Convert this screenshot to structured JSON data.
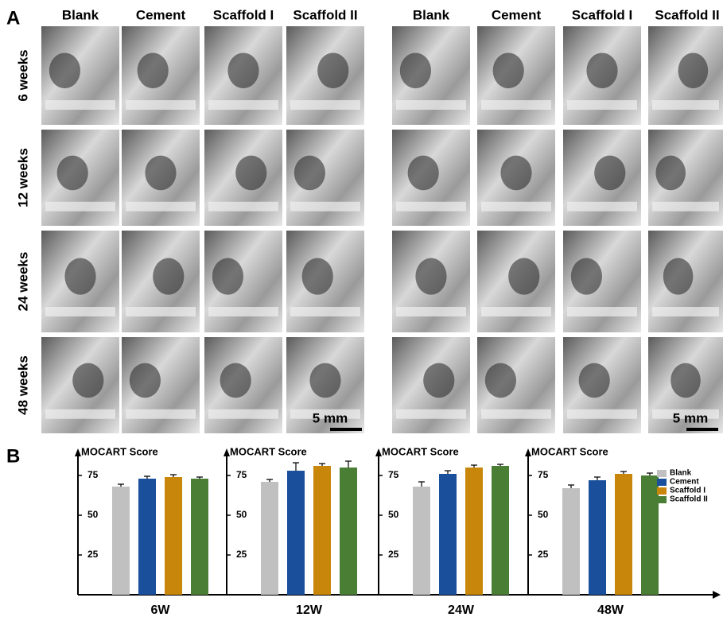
{
  "panel_a": {
    "label": "A",
    "columns": [
      "Blank",
      "Cement",
      "Scaffold I",
      "Scaffold II",
      "Blank",
      "Cement",
      "Scaffold I",
      "Scaffold II"
    ],
    "rows": [
      "6 weeks",
      "12 weeks",
      "24 weeks",
      "48 weeks"
    ],
    "scale_bar": "5 mm"
  },
  "panel_b": {
    "label": "B"
  },
  "chart_data": [
    {
      "type": "bar",
      "title": "MOCART Score",
      "categories": [
        "6W"
      ],
      "ylim": [
        0,
        90
      ],
      "yticks": [
        25,
        50,
        75
      ],
      "series": [
        {
          "color": "#c0c0c0",
          "values": [
            68
          ],
          "errors": [
            1.5
          ]
        },
        {
          "color": "#1a4f9c",
          "values": [
            73
          ],
          "errors": [
            1.5
          ]
        },
        {
          "color": "#c8860a",
          "values": [
            74
          ],
          "errors": [
            1.5
          ]
        },
        {
          "color": "#4a7e34",
          "values": [
            73
          ],
          "errors": [
            1
          ]
        }
      ]
    },
    {
      "type": "bar",
      "title": "MOCART Score",
      "categories": [
        "12W"
      ],
      "ylim": [
        0,
        90
      ],
      "yticks": [
        25,
        50,
        75
      ],
      "series": [
        {
          "color": "#c0c0c0",
          "values": [
            71
          ],
          "errors": [
            1.5
          ]
        },
        {
          "color": "#1a4f9c",
          "values": [
            78
          ],
          "errors": [
            5
          ]
        },
        {
          "color": "#c8860a",
          "values": [
            81
          ],
          "errors": [
            1.5
          ]
        },
        {
          "color": "#4a7e34",
          "values": [
            80
          ],
          "errors": [
            4
          ]
        }
      ]
    },
    {
      "type": "bar",
      "title": "MOCART Score",
      "categories": [
        "24W"
      ],
      "ylim": [
        0,
        90
      ],
      "yticks": [
        25,
        50,
        75
      ],
      "series": [
        {
          "color": "#c0c0c0",
          "values": [
            68
          ],
          "errors": [
            3
          ]
        },
        {
          "color": "#1a4f9c",
          "values": [
            76
          ],
          "errors": [
            2
          ]
        },
        {
          "color": "#c8860a",
          "values": [
            80
          ],
          "errors": [
            1.5
          ]
        },
        {
          "color": "#4a7e34",
          "values": [
            81
          ],
          "errors": [
            1
          ]
        }
      ]
    },
    {
      "type": "bar",
      "title": "MOCART Score",
      "categories": [
        "48W"
      ],
      "ylim": [
        0,
        90
      ],
      "yticks": [
        25,
        50,
        75
      ],
      "legend": "upper right",
      "series": [
        {
          "name": "Blank",
          "color": "#c0c0c0",
          "values": [
            67
          ],
          "errors": [
            2
          ]
        },
        {
          "name": "Cement",
          "color": "#1a4f9c",
          "values": [
            72
          ],
          "errors": [
            2
          ]
        },
        {
          "name": "Scaffold I",
          "color": "#c8860a",
          "values": [
            76
          ],
          "errors": [
            1.5
          ]
        },
        {
          "name": "Scaffold II",
          "color": "#4a7e34",
          "values": [
            75
          ],
          "errors": [
            1.5
          ]
        }
      ]
    }
  ]
}
